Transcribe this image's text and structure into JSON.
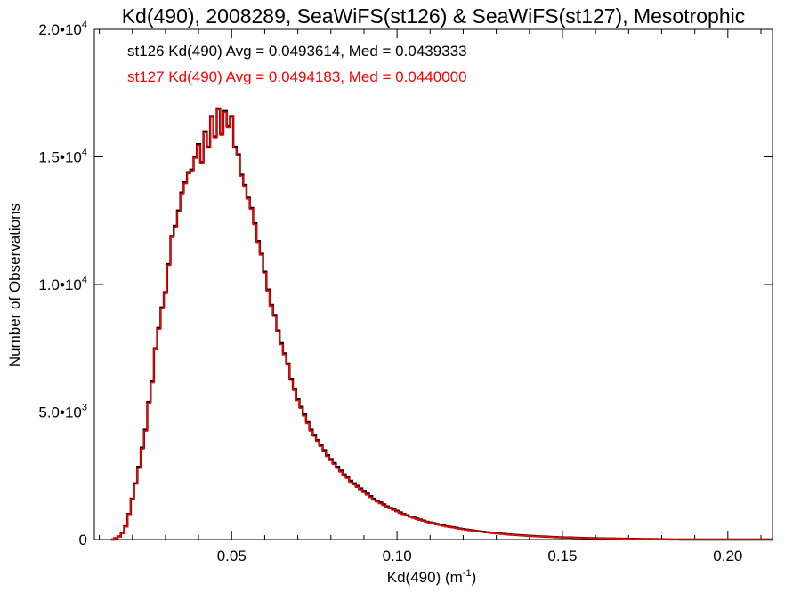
{
  "chart_data": {
    "type": "histogram-step",
    "title": "Kd(490), 2008289, SeaWiFS(st126) & SeaWiFS(st127), Mesotrophic",
    "xlabel": "Kd(490) (m",
    "xlabel_sup": "-1",
    "xlabel_end": ")",
    "ylabel": "Number of Observations",
    "xlim": [
      0.0085,
      0.2135
    ],
    "ylim": [
      0,
      20000
    ],
    "xticks": [
      {
        "value": 0.05,
        "label": "0.05"
      },
      {
        "value": 0.1,
        "label": "0.10"
      },
      {
        "value": 0.15,
        "label": "0.15"
      },
      {
        "value": 0.2,
        "label": "0.20"
      }
    ],
    "yticks": [
      {
        "value": 0,
        "label": "0",
        "sup": ""
      },
      {
        "value": 5000,
        "label": "5.0•10",
        "sup": "3"
      },
      {
        "value": 10000,
        "label": "1.0•10",
        "sup": "4"
      },
      {
        "value": 15000,
        "label": "1.5•10",
        "sup": "4"
      },
      {
        "value": 20000,
        "label": "2.0•10",
        "sup": "4"
      }
    ],
    "bin_width": 0.001,
    "bin_start": 0.0135,
    "series": [
      {
        "name": "st126",
        "color": "#000000",
        "stat_text": "st126 Kd(490) Avg = 0.0493614, Med = 0.0439333",
        "values": [
          0,
          50,
          120,
          250,
          520,
          1000,
          1600,
          2200,
          2850,
          3600,
          4300,
          5400,
          6200,
          7500,
          8300,
          9100,
          9700,
          10800,
          11900,
          12300,
          12900,
          13600,
          14000,
          14400,
          14500,
          15000,
          15500,
          14800,
          16000,
          15400,
          16600,
          15800,
          16900,
          15900,
          16800,
          16200,
          16600,
          15400,
          15100,
          14300,
          13900,
          13400,
          13000,
          12400,
          11700,
          11200,
          10500,
          9800,
          9200,
          8800,
          8200,
          7700,
          7300,
          6900,
          6300,
          5900,
          5500,
          5200,
          4900,
          4600,
          4300,
          4100,
          3900,
          3700,
          3500,
          3300,
          3150,
          3000,
          2850,
          2700,
          2550,
          2450,
          2300,
          2200,
          2100,
          2000,
          1900,
          1800,
          1700,
          1600,
          1520,
          1450,
          1380,
          1300,
          1240,
          1180,
          1120,
          1060,
          1000,
          950,
          900,
          860,
          820,
          780,
          740,
          700,
          670,
          640,
          610,
          580,
          550,
          520,
          500,
          480,
          455,
          430,
          410,
          390,
          370,
          350,
          335,
          320,
          305,
          290,
          275,
          260,
          248,
          236,
          224,
          212,
          200,
          190,
          180,
          171,
          162,
          154,
          146,
          139,
          132,
          125,
          119,
          113,
          107,
          101,
          96,
          91,
          86,
          82,
          78,
          74,
          70,
          66,
          62,
          59,
          56,
          53,
          50,
          47,
          45,
          43,
          41,
          39,
          37,
          35,
          33,
          31,
          29,
          27,
          25,
          23,
          21,
          19,
          17,
          15,
          13,
          11,
          9,
          7,
          5,
          3,
          2,
          1,
          0
        ]
      },
      {
        "name": "st127",
        "color": "#ff0000",
        "stat_text": "st127 Kd(490) Avg = 0.0494183, Med = 0.0440000",
        "values": [
          0,
          50,
          110,
          240,
          500,
          980,
          1580,
          2180,
          2800,
          3550,
          4250,
          5350,
          6150,
          7450,
          8250,
          9050,
          9650,
          10750,
          11850,
          12250,
          12850,
          13550,
          13950,
          14350,
          14450,
          14950,
          15450,
          14750,
          15950,
          15350,
          16550,
          15750,
          16850,
          15850,
          16750,
          16150,
          16550,
          15350,
          15050,
          14250,
          13850,
          13350,
          12950,
          12350,
          11650,
          11150,
          10450,
          9750,
          9150,
          8750,
          8150,
          7650,
          7250,
          6850,
          6250,
          5850,
          5450,
          5150,
          4850,
          4550,
          4250,
          4050,
          3850,
          3650,
          3450,
          3250,
          3100,
          2950,
          2800,
          2650,
          2500,
          2400,
          2250,
          2150,
          2050,
          1950,
          1850,
          1750,
          1650,
          1550,
          1480,
          1410,
          1340,
          1270,
          1210,
          1150,
          1090,
          1030,
          980,
          930,
          880,
          840,
          800,
          760,
          720,
          680,
          650,
          620,
          590,
          560,
          530,
          505,
          485,
          465,
          440,
          418,
          398,
          378,
          358,
          340,
          325,
          310,
          295,
          280,
          266,
          252,
          240,
          228,
          216,
          205,
          194,
          184,
          174,
          165,
          157,
          149,
          141,
          134,
          127,
          121,
          115,
          109,
          103,
          98,
          93,
          88,
          84,
          80,
          76,
          72,
          68,
          64,
          60,
          57,
          54,
          51,
          48,
          46,
          44,
          42,
          40,
          38,
          36,
          34,
          32,
          30,
          28,
          26,
          24,
          22,
          20,
          18,
          16,
          14,
          12,
          10,
          8,
          6,
          4,
          2,
          1,
          0
        ]
      }
    ]
  }
}
